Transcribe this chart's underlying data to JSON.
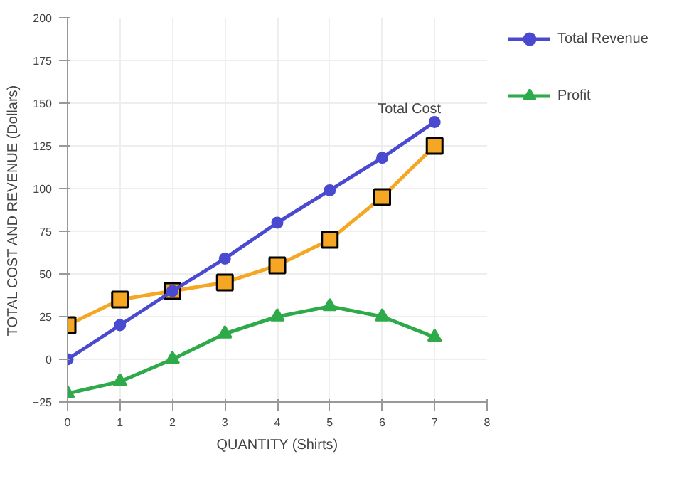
{
  "chart_data": {
    "type": "line",
    "xlabel": "QUANTITY (Shirts)",
    "ylabel": "TOTAL COST AND REVENUE (Dollars)",
    "x": [
      0,
      1,
      2,
      3,
      4,
      5,
      6,
      7
    ],
    "series": [
      {
        "name": "Total Revenue",
        "color": "#4a4ad0",
        "marker": "circle",
        "values": [
          0,
          20,
          40,
          59,
          80,
          99,
          118,
          139
        ]
      },
      {
        "color": "#f5a623",
        "marker": "square",
        "values": [
          20,
          35,
          40,
          45,
          55,
          70,
          95,
          125
        ]
      },
      {
        "name": "Profit",
        "color": "#2eaa4a",
        "marker": "triangle",
        "values": [
          -20,
          -13,
          0,
          15,
          25,
          31,
          25,
          13
        ]
      }
    ],
    "annotations": [
      {
        "text": "Total Cost",
        "x": 7,
        "y": 125
      }
    ],
    "xlim": [
      0,
      8
    ],
    "xticks": [
      0,
      1,
      2,
      3,
      4,
      5,
      6,
      7,
      8
    ],
    "ylim": [
      -25,
      200
    ],
    "yticks": [
      -25,
      0,
      25,
      50,
      75,
      100,
      125,
      150,
      175,
      200
    ],
    "grid": true,
    "legend": "right",
    "line_style": "solid"
  }
}
